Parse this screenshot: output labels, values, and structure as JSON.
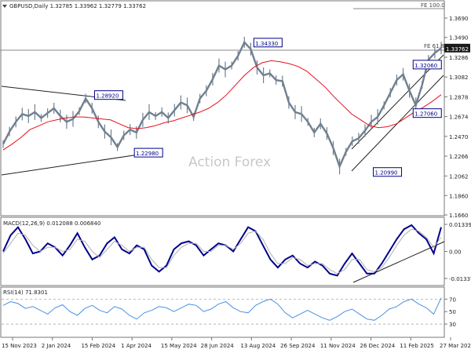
{
  "chart_data": {
    "type": "line",
    "symbol_header": "GBPUSD,Daily  1.32785 1.33962 1.32779 1.33762",
    "watermark": "Action Forex",
    "x_ticks": [
      "15 Nov 2023",
      "2 Jan 2024",
      "15 Feb 2024",
      "1 Apr 2024",
      "15 May 2024",
      "28 Jun 2024",
      "13 Aug 2024",
      "26 Sep 2024",
      "11 Nov 2024",
      "26 Dec 2024",
      "11 Feb 2025",
      "27 Mar 2025"
    ],
    "price_panel": {
      "y_ticks": [
        "1.3690",
        "1.3490",
        "1.3286",
        "1.3082",
        "1.2878",
        "1.2674",
        "1.2470",
        "1.2266",
        "1.2062",
        "1.1860",
        "1.1660"
      ],
      "ylim": [
        1.166,
        1.386
      ],
      "last_price": "1.33762",
      "series": [
        {
          "name": "price",
          "color": "#708090",
          "values": [
            1.239,
            1.252,
            1.262,
            1.27,
            1.268,
            1.272,
            1.266,
            1.271,
            1.276,
            1.268,
            1.262,
            1.265,
            1.273,
            1.286,
            1.276,
            1.262,
            1.252,
            1.246,
            1.236,
            1.248,
            1.254,
            1.251,
            1.264,
            1.272,
            1.268,
            1.272,
            1.266,
            1.274,
            1.282,
            1.279,
            1.267,
            1.286,
            1.294,
            1.306,
            1.32,
            1.316,
            1.32,
            1.33,
            1.344,
            1.337,
            1.318,
            1.31,
            1.312,
            1.305,
            1.304,
            1.282,
            1.272,
            1.27,
            1.262,
            1.251,
            1.26,
            1.25,
            1.235,
            1.216,
            1.231,
            1.242,
            1.245,
            1.253,
            1.262,
            1.267,
            1.279,
            1.292,
            1.305,
            1.311,
            1.294,
            1.279,
            1.3,
            1.326,
            1.333,
            1.338
          ]
        },
        {
          "name": "ma",
          "color": "#e8101a",
          "values": [
            1.233,
            1.239,
            1.246,
            1.254,
            1.258,
            1.262,
            1.264,
            1.266,
            1.267,
            1.267,
            1.266,
            1.265,
            1.264,
            1.26,
            1.256,
            1.255,
            1.256,
            1.258,
            1.261,
            1.263,
            1.266,
            1.269,
            1.272,
            1.276,
            1.282,
            1.29,
            1.3,
            1.31,
            1.318,
            1.323,
            1.325,
            1.324,
            1.322,
            1.319,
            1.314,
            1.306,
            1.298,
            1.288,
            1.279,
            1.27,
            1.264,
            1.258,
            1.256,
            1.257,
            1.26,
            1.266,
            1.272,
            1.277,
            1.283,
            1.29
          ]
        }
      ],
      "labels": [
        {
          "text": "1.34330",
          "x": "13 Aug 2024",
          "value": 1.3433
        },
        {
          "text": "1.28920",
          "x": "15 Feb 2024",
          "value": 1.2892
        },
        {
          "text": "1.22980",
          "x": "1 Apr 2024",
          "value": 1.2298
        },
        {
          "text": "1.32060",
          "x": "11 Feb 2025",
          "value": 1.3206
        },
        {
          "text": "1.27060",
          "x": "11 Feb 2025",
          "value": 1.2706
        },
        {
          "text": "1.20990",
          "x": "26 Dec 2024",
          "value": 1.2099
        }
      ],
      "fib_levels": [
        {
          "text": "FE 100.0",
          "value": 1.383
        },
        {
          "text": "FE 61.8",
          "value": 1.3398
        }
      ]
    },
    "macd_panel": {
      "title": "MACD(12,26,9) 0.012088 0.006840",
      "y_ticks": [
        "0.013392",
        "0.00",
        "-0.013378"
      ],
      "ylim": [
        -0.0165,
        0.0165
      ],
      "series": [
        {
          "name": "macd",
          "color": "#00008b",
          "values": [
            0.0,
            0.008,
            0.012,
            0.006,
            -0.001,
            0.0,
            0.004,
            0.002,
            -0.002,
            0.003,
            0.009,
            0.002,
            -0.004,
            -0.002,
            0.004,
            0.007,
            0.001,
            -0.001,
            0.003,
            0.001,
            -0.007,
            -0.01,
            -0.007,
            0.001,
            0.004,
            0.005,
            0.003,
            -0.002,
            0.001,
            0.004,
            0.003,
            0.0,
            0.006,
            0.012,
            0.01,
            0.003,
            -0.004,
            -0.008,
            -0.004,
            -0.002,
            -0.006,
            -0.008,
            -0.005,
            -0.007,
            -0.011,
            -0.012,
            -0.006,
            -0.001,
            -0.006,
            -0.011,
            -0.011,
            -0.006,
            0.0,
            0.006,
            0.011,
            0.013,
            0.009,
            0.006,
            -0.001,
            0.012
          ]
        },
        {
          "name": "signal",
          "color": "#b0b0b0",
          "values": [
            -0.001,
            0.004,
            0.009,
            0.008,
            0.003,
            0.0,
            0.002,
            0.002,
            0.0,
            0.001,
            0.006,
            0.005,
            0.0,
            -0.003,
            0.001,
            0.005,
            0.003,
            0.0,
            0.002,
            0.002,
            -0.004,
            -0.008,
            -0.008,
            -0.002,
            0.002,
            0.004,
            0.004,
            0.0,
            0.0,
            0.003,
            0.003,
            0.001,
            0.004,
            0.009,
            0.01,
            0.006,
            -0.001,
            -0.006,
            -0.006,
            -0.003,
            -0.004,
            -0.007,
            -0.006,
            -0.006,
            -0.009,
            -0.011,
            -0.009,
            -0.004,
            -0.004,
            -0.009,
            -0.01,
            -0.008,
            -0.003,
            0.003,
            0.008,
            0.011,
            0.01,
            0.007,
            0.002,
            0.007
          ]
        }
      ]
    },
    "rsi_panel": {
      "title": "RSI(14) 71.8301",
      "y_ticks": [
        "70",
        "50",
        "30"
      ],
      "ylim": [
        10,
        88
      ],
      "series": [
        {
          "name": "rsi",
          "color": "#4a90e2",
          "values": [
            60,
            66,
            63,
            55,
            58,
            52,
            46,
            56,
            61,
            50,
            44,
            55,
            60,
            52,
            48,
            58,
            54,
            44,
            38,
            48,
            52,
            58,
            56,
            50,
            56,
            62,
            60,
            50,
            54,
            62,
            66,
            56,
            50,
            48,
            60,
            66,
            70,
            62,
            48,
            40,
            46,
            52,
            46,
            40,
            36,
            42,
            50,
            54,
            46,
            38,
            36,
            44,
            54,
            58,
            66,
            70,
            62,
            56,
            46,
            72
          ]
        }
      ]
    }
  }
}
